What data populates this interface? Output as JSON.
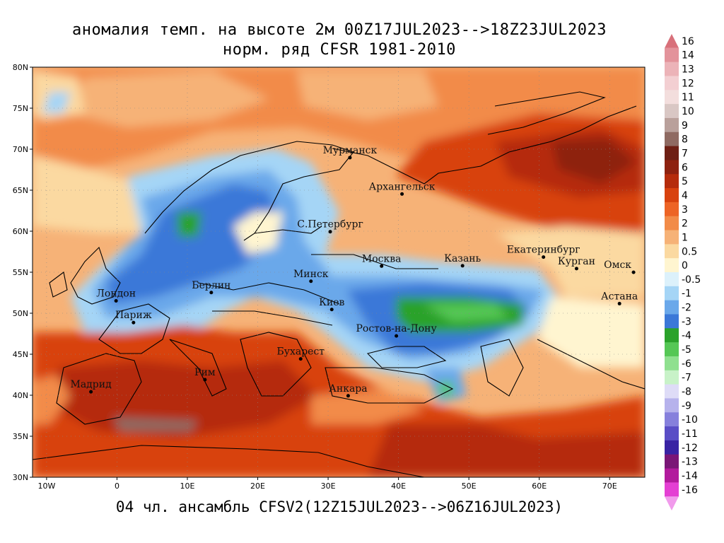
{
  "title_line1": "аномалия темп. на высоте 2м 00Z17JUL2023-->18Z23JUL2023",
  "title_line2": "норм. ряд CFSR 1981-2010",
  "footer": "04 чл. ансамбль CFSV2(12Z15JUL2023-->06Z16JUL2023)",
  "lat_labels": [
    "80N",
    "75N",
    "70N",
    "65N",
    "60N",
    "55N",
    "50N",
    "45N",
    "40N",
    "35N",
    "30N"
  ],
  "lon_labels": [
    "10W",
    "0",
    "10E",
    "20E",
    "30E",
    "40E",
    "50E",
    "60E",
    "70E"
  ],
  "cities": [
    {
      "name": "Мурманск",
      "lon": 33.1,
      "lat": 68.97
    },
    {
      "name": "Архангельск",
      "lon": 40.5,
      "lat": 64.54
    },
    {
      "name": "С.Петербург",
      "lon": 30.3,
      "lat": 59.94
    },
    {
      "name": "Москва",
      "lon": 37.6,
      "lat": 55.75
    },
    {
      "name": "Казань",
      "lon": 49.1,
      "lat": 55.79
    },
    {
      "name": "Екатеринбург",
      "lon": 60.6,
      "lat": 56.84
    },
    {
      "name": "Курган",
      "lon": 65.3,
      "lat": 55.44
    },
    {
      "name": "Омск",
      "lon": 73.4,
      "lat": 54.99
    },
    {
      "name": "Астана",
      "lon": 71.4,
      "lat": 51.17
    },
    {
      "name": "Минск",
      "lon": 27.56,
      "lat": 53.9
    },
    {
      "name": "Берлин",
      "lon": 13.4,
      "lat": 52.52
    },
    {
      "name": "Лондон",
      "lon": -0.13,
      "lat": 51.51
    },
    {
      "name": "Париж",
      "lon": 2.35,
      "lat": 48.86
    },
    {
      "name": "Киев",
      "lon": 30.52,
      "lat": 50.45
    },
    {
      "name": "Ростов-на-Дону",
      "lon": 39.7,
      "lat": 47.23
    },
    {
      "name": "Бухарест",
      "lon": 26.1,
      "lat": 44.43
    },
    {
      "name": "Рим",
      "lon": 12.5,
      "lat": 41.9
    },
    {
      "name": "Мадрид",
      "lon": -3.7,
      "lat": 40.42
    },
    {
      "name": "Анкара",
      "lon": 32.85,
      "lat": 39.93
    }
  ],
  "colorbar": {
    "labels": [
      "16",
      "14",
      "13",
      "12",
      "11",
      "10",
      "9",
      "8",
      "7",
      "6",
      "5",
      "4",
      "3",
      "2",
      "1",
      "0.5",
      "0",
      "-0.5",
      "-1",
      "-2",
      "-3",
      "-4",
      "-5",
      "-6",
      "-7",
      "-8",
      "-9",
      "-10",
      "-11",
      "-12",
      "-13",
      "-14",
      "-16"
    ],
    "colors": [
      "#d8707a",
      "#e3939b",
      "#ecb3b8",
      "#f3cfd2",
      "#f3dedd",
      "#d9c7c4",
      "#b9a09b",
      "#8f6a62",
      "#6e1f14",
      "#8e2210",
      "#b52c0c",
      "#d8420e",
      "#ed6425",
      "#f28b48",
      "#f6b277",
      "#fbd9a1",
      "#fff5d0",
      "#dcf1fb",
      "#a5d5f6",
      "#6aa8ea",
      "#3b78d8",
      "#2aa22a",
      "#55c755",
      "#8fe08f",
      "#c8f2c8",
      "#dedcf7",
      "#b6b2ec",
      "#8680dc",
      "#5a4ec6",
      "#3923a4",
      "#7a1677",
      "#b21a9d",
      "#e43fd3",
      "#f19bec"
    ]
  }
}
